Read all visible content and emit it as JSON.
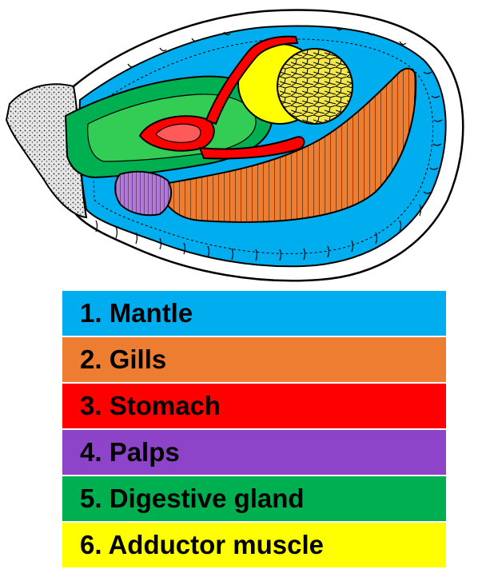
{
  "legend": {
    "items": [
      {
        "label": "1. Mantle",
        "color": "#00AEEF",
        "structure": "mantle"
      },
      {
        "label": "2. Gills",
        "color": "#ED7D31",
        "structure": "gills"
      },
      {
        "label": "3. Stomach",
        "color": "#FF0000",
        "structure": "stomach"
      },
      {
        "label": "4. Palps",
        "color": "#8E44C8",
        "structure": "palps"
      },
      {
        "label": "5. Digestive gland",
        "color": "#00B050",
        "structure": "digestive-gland"
      },
      {
        "label": "6. Adductor muscle",
        "color": "#FFFF00",
        "structure": "adductor-muscle"
      }
    ]
  },
  "diagram": {
    "shell_color": "#FFFFFF",
    "hinge_color": "#C8C8C8",
    "outline_color": "#000000",
    "palps_fill": "#B07AD6",
    "digestive_light_fill": "#33CC55",
    "stomach_light_fill": "#FF5A5A",
    "adductor_texture_fill": "#F2E84A"
  }
}
